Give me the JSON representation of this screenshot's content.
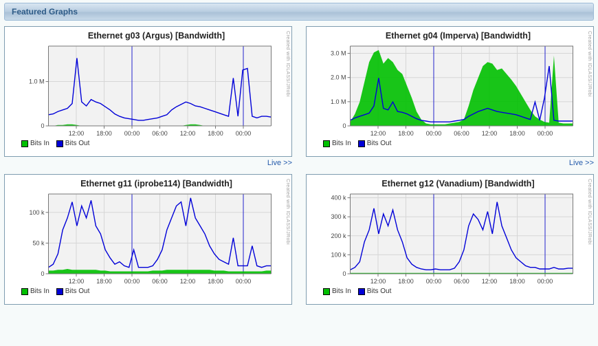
{
  "header": {
    "title": "Featured Graphs"
  },
  "link": {
    "live": "Live >>"
  },
  "legend": {
    "bits_in": "Bits In",
    "bits_out": "Bits Out"
  },
  "watermark": "Created with IDLASS/JRobi",
  "colors": {
    "bits_in": "#00c000",
    "bits_out": "#0000d8",
    "grid": "#d6d6d6",
    "axis": "#777777",
    "day_sep": "#2222cc",
    "plot_bg": "#f2f2f2",
    "page_bg": "#f6fafa",
    "header_text": "#2e5b87",
    "link": "#2259aa",
    "text": "#333333"
  },
  "typography": {
    "title_fontsize": 12.5,
    "axis_fontsize": 9,
    "legend_fontsize": 10
  },
  "x_axis": {
    "hours_total": 48,
    "tick_labels": [
      "12:00",
      "18:00",
      "00:00",
      "06:00",
      "12:00",
      "18:00",
      "00:00"
    ],
    "tick_hours": [
      6,
      12,
      18,
      24,
      30,
      36,
      42
    ],
    "day_sep_hours": [
      18,
      42
    ]
  },
  "charts": [
    {
      "id": "g03",
      "title": "Ethernet g03 (Argus) [Bandwidth]",
      "type": "area+line",
      "y_axis": {
        "max": 1800000,
        "ticks": [
          0,
          1000000
        ],
        "tick_labels": [
          "0",
          "1.0 M"
        ]
      },
      "in_series": [
        0,
        0,
        0.01,
        0.01,
        0.02,
        0.02,
        0.01,
        0,
        0,
        0,
        0,
        0,
        0,
        0,
        0,
        0,
        0,
        0,
        0,
        0,
        0,
        0,
        0,
        0,
        0,
        0,
        0,
        0,
        0,
        0.01,
        0.02,
        0.02,
        0.01,
        0,
        0,
        0,
        0,
        0,
        0,
        0,
        0,
        0,
        0,
        0,
        0,
        0,
        0,
        0
      ],
      "out_series": [
        0.14,
        0.15,
        0.18,
        0.2,
        0.22,
        0.28,
        0.85,
        0.3,
        0.25,
        0.33,
        0.3,
        0.28,
        0.24,
        0.2,
        0.15,
        0.12,
        0.1,
        0.09,
        0.08,
        0.07,
        0.07,
        0.08,
        0.09,
        0.1,
        0.12,
        0.14,
        0.2,
        0.24,
        0.27,
        0.3,
        0.28,
        0.25,
        0.24,
        0.22,
        0.2,
        0.18,
        0.16,
        0.14,
        0.12,
        0.6,
        0.12,
        0.7,
        0.72,
        0.12,
        0.1,
        0.12,
        0.12,
        0.11
      ]
    },
    {
      "id": "g04",
      "title": "Ethernet g04 (Imperva) [Bandwidth]",
      "type": "area+line",
      "y_axis": {
        "max": 3300000,
        "ticks": [
          0,
          1000000,
          2000000,
          3000000
        ],
        "tick_labels": [
          "0",
          "1.0 M",
          "2.0 M",
          "3.0 M"
        ]
      },
      "in_series": [
        0.05,
        0.15,
        0.3,
        0.55,
        0.8,
        0.92,
        0.95,
        0.78,
        0.85,
        0.8,
        0.7,
        0.65,
        0.5,
        0.35,
        0.18,
        0.08,
        0.03,
        0.02,
        0.02,
        0.02,
        0.02,
        0.03,
        0.04,
        0.05,
        0.08,
        0.25,
        0.45,
        0.6,
        0.75,
        0.8,
        0.78,
        0.7,
        0.72,
        0.65,
        0.58,
        0.5,
        0.4,
        0.3,
        0.2,
        0.12,
        0.08,
        0.05,
        0.04,
        0.88,
        0.04,
        0.03,
        0.03,
        0.03
      ],
      "out_series": [
        0.07,
        0.1,
        0.12,
        0.14,
        0.16,
        0.25,
        0.6,
        0.22,
        0.2,
        0.3,
        0.18,
        0.17,
        0.15,
        0.12,
        0.09,
        0.07,
        0.06,
        0.05,
        0.05,
        0.05,
        0.05,
        0.05,
        0.06,
        0.07,
        0.08,
        0.12,
        0.15,
        0.18,
        0.2,
        0.22,
        0.2,
        0.18,
        0.17,
        0.16,
        0.15,
        0.14,
        0.12,
        0.1,
        0.08,
        0.3,
        0.07,
        0.35,
        0.75,
        0.07,
        0.06,
        0.06,
        0.06,
        0.06
      ]
    },
    {
      "id": "g11",
      "title": "Ethernet g11 (iprobe114) [Bandwidth]",
      "type": "area+line",
      "y_axis": {
        "max": 130000,
        "ticks": [
          0,
          50000,
          100000
        ],
        "tick_labels": [
          "0",
          "50 k",
          "100 k"
        ]
      },
      "in_series": [
        0.04,
        0.04,
        0.05,
        0.05,
        0.06,
        0.05,
        0.05,
        0.05,
        0.05,
        0.05,
        0.05,
        0.04,
        0.04,
        0.03,
        0.03,
        0.03,
        0.03,
        0.03,
        0.03,
        0.03,
        0.03,
        0.03,
        0.04,
        0.04,
        0.04,
        0.05,
        0.05,
        0.05,
        0.05,
        0.05,
        0.05,
        0.05,
        0.05,
        0.05,
        0.05,
        0.04,
        0.04,
        0.04,
        0.03,
        0.03,
        0.03,
        0.03,
        0.03,
        0.03,
        0.03,
        0.03,
        0.04,
        0.04
      ],
      "out_series": [
        0.08,
        0.12,
        0.25,
        0.55,
        0.7,
        0.9,
        0.6,
        0.85,
        0.7,
        0.92,
        0.6,
        0.5,
        0.3,
        0.2,
        0.12,
        0.15,
        0.1,
        0.08,
        0.3,
        0.08,
        0.08,
        0.08,
        0.1,
        0.18,
        0.3,
        0.55,
        0.7,
        0.85,
        0.9,
        0.6,
        0.95,
        0.7,
        0.6,
        0.5,
        0.35,
        0.25,
        0.18,
        0.15,
        0.12,
        0.45,
        0.1,
        0.1,
        0.1,
        0.35,
        0.1,
        0.08,
        0.1,
        0.1
      ]
    },
    {
      "id": "g12",
      "title": "Ethernet g12 (Vanadium) [Bandwidth]",
      "type": "area+line",
      "y_axis": {
        "max": 420000,
        "ticks": [
          0,
          100000,
          200000,
          300000,
          400000
        ],
        "tick_labels": [
          "0",
          "100 k",
          "200 k",
          "300 k",
          "400 k"
        ]
      },
      "in_series": [
        0.01,
        0.01,
        0.01,
        0.01,
        0.01,
        0.01,
        0.01,
        0.01,
        0.01,
        0.01,
        0.01,
        0.01,
        0.01,
        0.01,
        0.01,
        0.01,
        0.01,
        0.01,
        0.01,
        0.01,
        0.01,
        0.01,
        0.01,
        0.01,
        0.01,
        0.01,
        0.01,
        0.01,
        0.01,
        0.01,
        0.01,
        0.01,
        0.01,
        0.01,
        0.01,
        0.01,
        0.01,
        0.01,
        0.01,
        0.01,
        0.01,
        0.01,
        0.01,
        0.01,
        0.01,
        0.01,
        0.01,
        0.01
      ],
      "out_series": [
        0.05,
        0.08,
        0.15,
        0.4,
        0.55,
        0.82,
        0.5,
        0.75,
        0.6,
        0.8,
        0.55,
        0.4,
        0.2,
        0.12,
        0.08,
        0.06,
        0.05,
        0.05,
        0.06,
        0.05,
        0.05,
        0.05,
        0.07,
        0.15,
        0.3,
        0.6,
        0.75,
        0.68,
        0.55,
        0.78,
        0.5,
        0.9,
        0.6,
        0.45,
        0.3,
        0.2,
        0.15,
        0.1,
        0.08,
        0.08,
        0.06,
        0.06,
        0.06,
        0.08,
        0.06,
        0.06,
        0.07,
        0.07
      ]
    }
  ]
}
